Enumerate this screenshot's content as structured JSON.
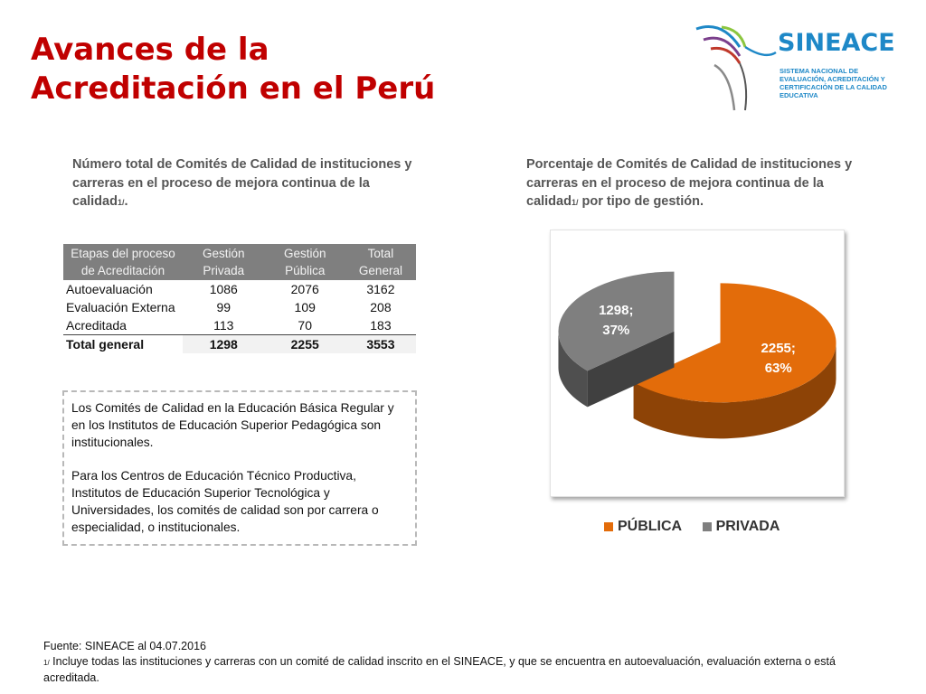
{
  "header": {
    "title_line1": "Avances de la",
    "title_line2": "Acreditación en el Perú",
    "logo_name": "SINEACE",
    "logo_sub": "SISTEMA NACIONAL DE EVALUACIÓN, ACREDITACIÓN Y CERTIFICACIÓN DE LA CALIDAD EDUCATIVA"
  },
  "left": {
    "subhead": "Número total de Comités de Calidad de instituciones y carreras  en el proceso de mejora continua de la calidad",
    "subhead_note": "1/",
    "subhead_end": ".",
    "table": {
      "headers": [
        "Etapas del proceso de Acreditación",
        "Gestión Privada",
        "Gestión Pública",
        "Total General"
      ],
      "rows": [
        [
          "Autoevaluación",
          "1086",
          "2076",
          "3162"
        ],
        [
          "Evaluación Externa",
          "99",
          "109",
          "208"
        ],
        [
          "Acreditada",
          "113",
          "70",
          "183"
        ]
      ],
      "total": [
        "Total general",
        "1298",
        "2255",
        "3553"
      ]
    },
    "note_p1": "Los Comités de Calidad en la Educación Básica Regular y en los Institutos de Educación Superior Pedagógica son institucionales.",
    "note_p2": "Para los Centros de Educación Técnico Productiva, Institutos de Educación Superior Tecnológica y Universidades, los comités de calidad son por carrera o especialidad, o institucionales."
  },
  "right": {
    "subhead": "Porcentaje de Comités de Calidad de instituciones y carreras  en el proceso de mejora continua de la calidad",
    "subhead_note": "1/",
    "subhead_end": " por tipo de gestión."
  },
  "chart_data": {
    "type": "pie",
    "title": "",
    "series": [
      {
        "name": "PÚBLICA",
        "value": 2255,
        "percent": 63,
        "label_line1": "2255;",
        "label_line2": "63%",
        "color": "#e36c0a"
      },
      {
        "name": "PRIVADA",
        "value": 1298,
        "percent": 37,
        "label_line1": "1298;",
        "label_line2": "37%",
        "color": "#7f7f7f"
      }
    ],
    "legend_position": "bottom",
    "style": "3d-exploded"
  },
  "footer": {
    "source": "Fuente: SINEACE al  04.07.2016",
    "note_mark": "1/",
    "note_text": " Incluye todas las instituciones y carreras  con un comité de calidad inscrito en el SINEACE, y que se encuentra en autoevaluación, evaluación externa o está acreditada."
  }
}
